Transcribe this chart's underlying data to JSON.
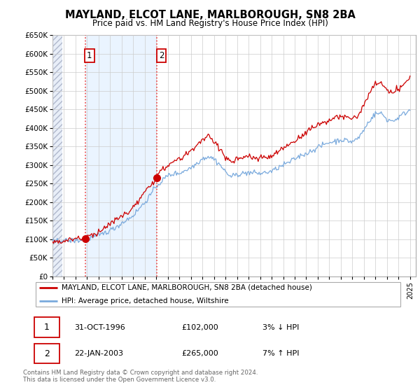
{
  "title": "MAYLAND, ELCOT LANE, MARLBOROUGH, SN8 2BA",
  "subtitle": "Price paid vs. HM Land Registry's House Price Index (HPI)",
  "legend_line1": "MAYLAND, ELCOT LANE, MARLBOROUGH, SN8 2BA (detached house)",
  "legend_line2": "HPI: Average price, detached house, Wiltshire",
  "annotation1_date": "31-OCT-1996",
  "annotation1_price": "£102,000",
  "annotation1_hpi": "3% ↓ HPI",
  "annotation2_date": "22-JAN-2003",
  "annotation2_price": "£265,000",
  "annotation2_hpi": "7% ↑ HPI",
  "footer": "Contains HM Land Registry data © Crown copyright and database right 2024.\nThis data is licensed under the Open Government Licence v3.0.",
  "sale_color": "#cc0000",
  "hpi_color": "#7aaadd",
  "vline_color": "#ee4444",
  "shade_color": "#ddeeff",
  "hatch_color": "#cccccc",
  "ylim": [
    0,
    650000
  ],
  "yticks": [
    0,
    50000,
    100000,
    150000,
    200000,
    250000,
    300000,
    350000,
    400000,
    450000,
    500000,
    550000,
    600000,
    650000
  ],
  "xlim_start": 1994.0,
  "xlim_end": 2025.5,
  "sale1_x": 1996.83,
  "sale1_y": 102000,
  "sale2_x": 2003.06,
  "sale2_y": 265000,
  "fig_width": 6.0,
  "fig_height": 5.6,
  "dpi": 100
}
